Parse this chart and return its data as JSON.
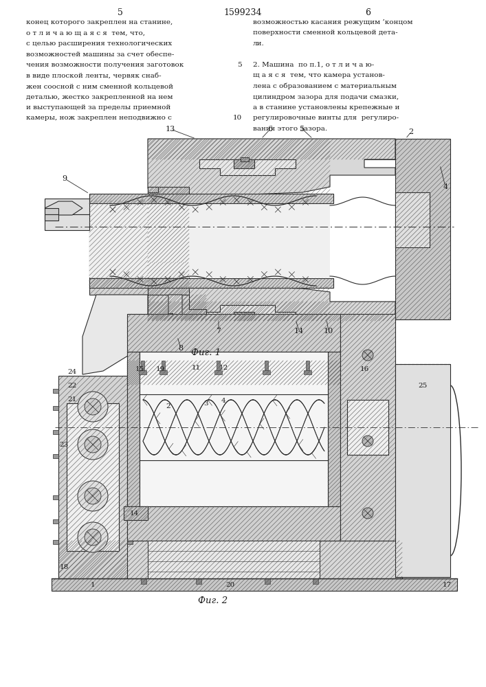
{
  "patent_number": "1599234",
  "page_left": "5",
  "page_right": "6",
  "bg": "#ffffff",
  "tc": "#1a1a1a",
  "lc": "#2a2a2a",
  "col1_text": [
    "конец которого закреплен на станине,",
    "о т л и ч а ю щ а я с я  тем, что,",
    "с целью расширения технологических",
    "возможностей машины за счет обеспе-",
    "чения возможности получения заготовок",
    "в виде плоской ленты, червяк снаб-",
    "жен соосной с ним сменной кольцевой",
    "деталью, жестко закрепленной на нем",
    "и выступающей за пределы приемной",
    "камеры, нож закреплен неподвижно с"
  ],
  "col2_text": [
    "возможностью касания режущим ’концом",
    "поверхности сменной кольцевой дета-",
    "ли.",
    "",
    "2. Машина  по п.1, о т л и ч а ю-",
    "щ а я с я  тем, что камера установ-",
    "лена с образованием с материальным",
    "цилиндром зазора для подачи смазки,",
    "а в станине установлены крепежные и",
    "регулировочные винты для  регулиро-",
    "вания этого зазора."
  ],
  "fig1_caption": "Фиг. 1",
  "fig2_caption": "Фиг. 2",
  "line_num_5_row": 4,
  "line_num_10_row": 9
}
